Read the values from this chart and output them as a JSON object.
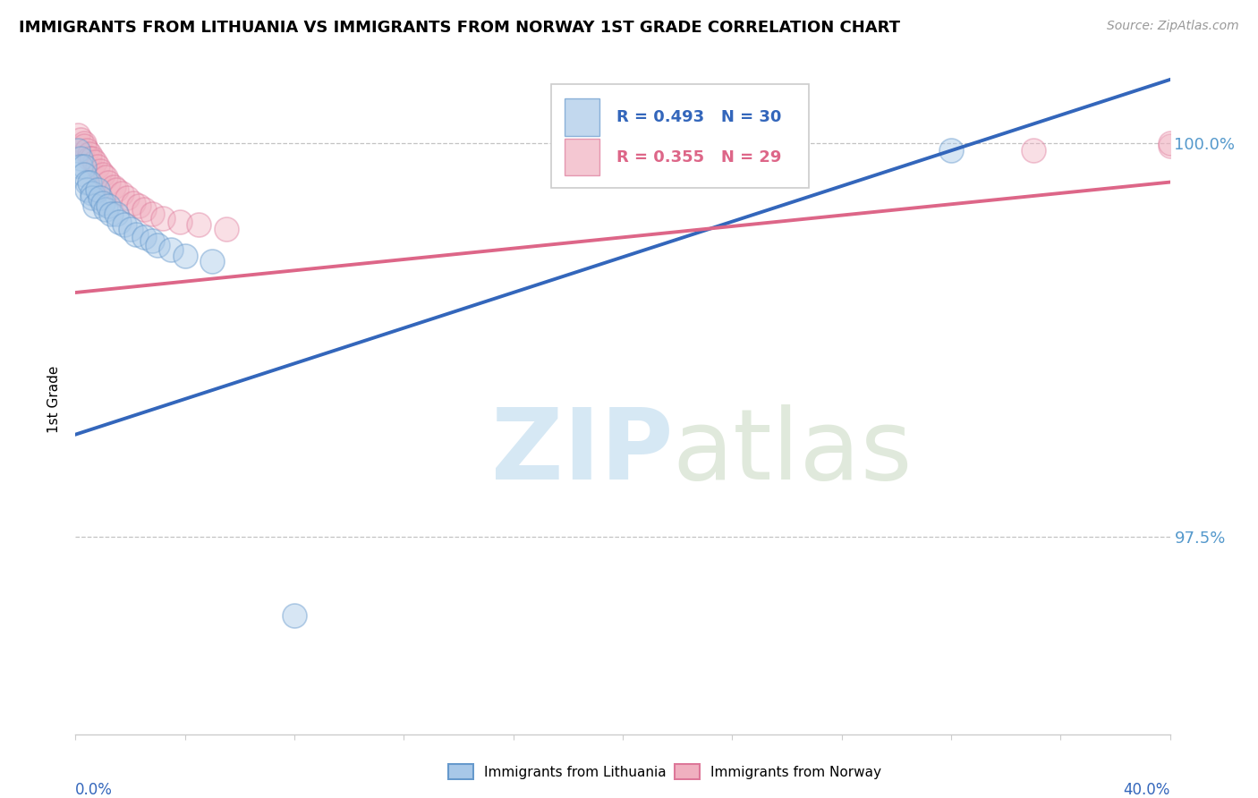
{
  "title": "IMMIGRANTS FROM LITHUANIA VS IMMIGRANTS FROM NORWAY 1ST GRADE CORRELATION CHART",
  "source": "Source: ZipAtlas.com",
  "ylabel": "1st Grade",
  "xlim": [
    0.0,
    0.4
  ],
  "ylim": [
    0.9625,
    1.005
  ],
  "ytick_labels": [
    "100.0%",
    "97.5%"
  ],
  "ytick_values": [
    1.0,
    0.975
  ],
  "R_lithuania": 0.493,
  "N_lithuania": 30,
  "R_norway": 0.355,
  "N_norway": 29,
  "color_lithuania_fill": "#a8c8e8",
  "color_lithuania_edge": "#6699cc",
  "color_norway_fill": "#f0b0c0",
  "color_norway_edge": "#dd7799",
  "color_trendline_lithuania": "#3366bb",
  "color_trendline_norway": "#dd6688",
  "color_ytick": "#5599cc",
  "color_xtick": "#3366bb",
  "lit_trendline_x0": 0.0,
  "lit_trendline_y0": 0.9815,
  "lit_trendline_x1": 0.32,
  "lit_trendline_y1": 0.9995,
  "nor_trendline_x0": 0.0,
  "nor_trendline_y0": 0.9905,
  "nor_trendline_x1": 0.4,
  "nor_trendline_y1": 0.9975
}
